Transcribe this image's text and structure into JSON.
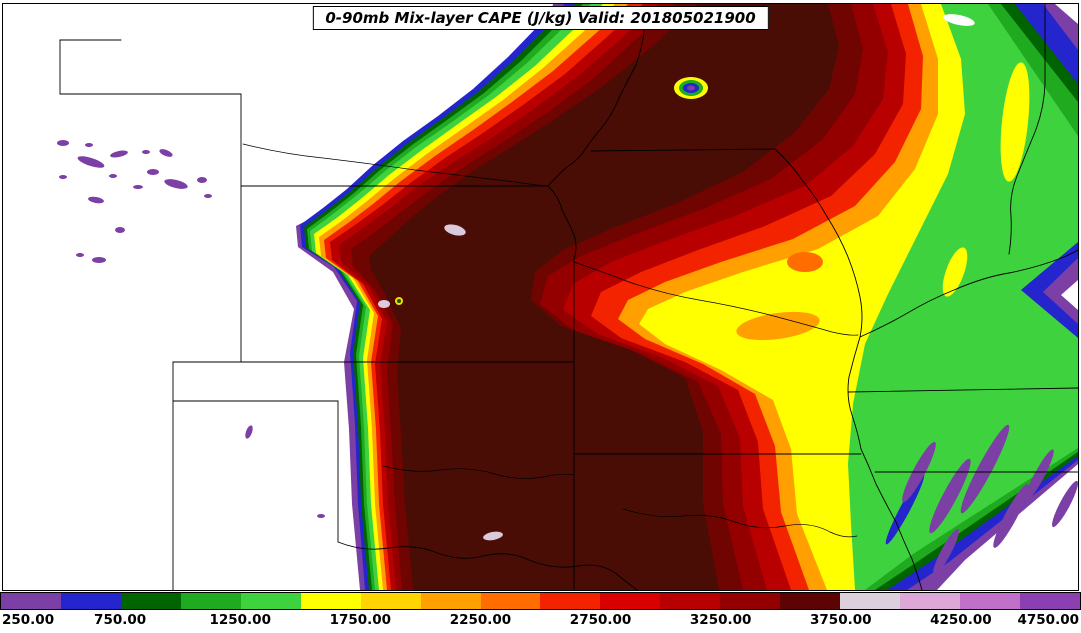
{
  "chart_data": {
    "type": "heatmap",
    "subtype": "filled-contour-weather-map",
    "title": "0-90mb Mix-layer CAPE (J/kg) Valid: 201805021900",
    "variable": "0-90mb Mix-layer CAPE",
    "units": "J/kg",
    "valid_time": "201805021900",
    "basemap": "US state borders and rivers (central United States)",
    "levels": [
      250,
      500,
      750,
      1000,
      1250,
      1500,
      1750,
      2000,
      2250,
      2500,
      2750,
      3000,
      3250,
      3500,
      3750,
      4000,
      4250,
      4500,
      4750
    ],
    "colorbar": {
      "position": "bottom",
      "orientation": "horizontal",
      "tick_labels": [
        "250.00",
        "750.00",
        "1250.00",
        "1750.00",
        "2250.00",
        "2750.00",
        "3250.00",
        "3750.00",
        "4250.00",
        "4750.00"
      ],
      "colors": [
        "#7b3fa5",
        "#2525cd",
        "#006400",
        "#1faa1f",
        "#3fd23f",
        "#ffff00",
        "#ffd400",
        "#ffa000",
        "#ff6d00",
        "#f32300",
        "#d90000",
        "#b80000",
        "#940000",
        "#5c0404",
        "#dcd0dc",
        "#dda8d8",
        "#c070c8",
        "#8c3fb0"
      ]
    },
    "extra_colors": {
      "core": "#700400",
      "core_max": "#4a0d06",
      "pale_high": "#d9cbdb",
      "white": "#ffffff"
    },
    "field_description": "Broad CAPE maximum (3000-3750+ J/kg) over Oklahoma, Kansas and Missouri with a sharp western dryline gradient, decreasing bands eastward into Illinois/Arkansas and scattered low-CAPE patches over the Colorado high terrain"
  }
}
